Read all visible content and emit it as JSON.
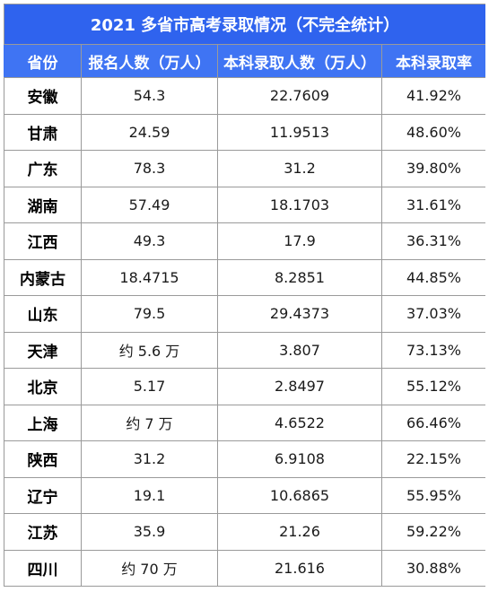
{
  "table": {
    "title": "2021 多省市高考录取情况（不完全统计）",
    "headers": [
      "省份",
      "报名人数（万人）",
      "本科录取人数（万人）",
      "本科录取率"
    ],
    "rows": [
      [
        "安徽",
        "54.3",
        "22.7609",
        "41.92%"
      ],
      [
        "甘肃",
        "24.59",
        "11.9513",
        "48.60%"
      ],
      [
        "广东",
        "78.3",
        "31.2",
        "39.80%"
      ],
      [
        "湖南",
        "57.49",
        "18.1703",
        "31.61%"
      ],
      [
        "江西",
        "49.3",
        "17.9",
        "36.31%"
      ],
      [
        "内蒙古",
        "18.4715",
        "8.2851",
        "44.85%"
      ],
      [
        "山东",
        "79.5",
        "29.4373",
        "37.03%"
      ],
      [
        "天津",
        "约 5.6 万",
        "3.807",
        "73.13%"
      ],
      [
        "北京",
        "5.17",
        "2.8497",
        "55.12%"
      ],
      [
        "上海",
        "约 7 万",
        "4.6522",
        "66.46%"
      ],
      [
        "陕西",
        "31.2",
        "6.9108",
        "22.15%"
      ],
      [
        "辽宁",
        "19.1",
        "10.6865",
        "55.95%"
      ],
      [
        "江苏",
        "35.9",
        "21.26",
        "59.22%"
      ],
      [
        "四川",
        "约 70 万",
        "21.616",
        "30.88%"
      ]
    ]
  },
  "colors": {
    "title_bg": "#2f63ee",
    "header_bg": "#3f74f3",
    "header_text": "#ffffff",
    "grid_line": "#9a9a9a"
  }
}
